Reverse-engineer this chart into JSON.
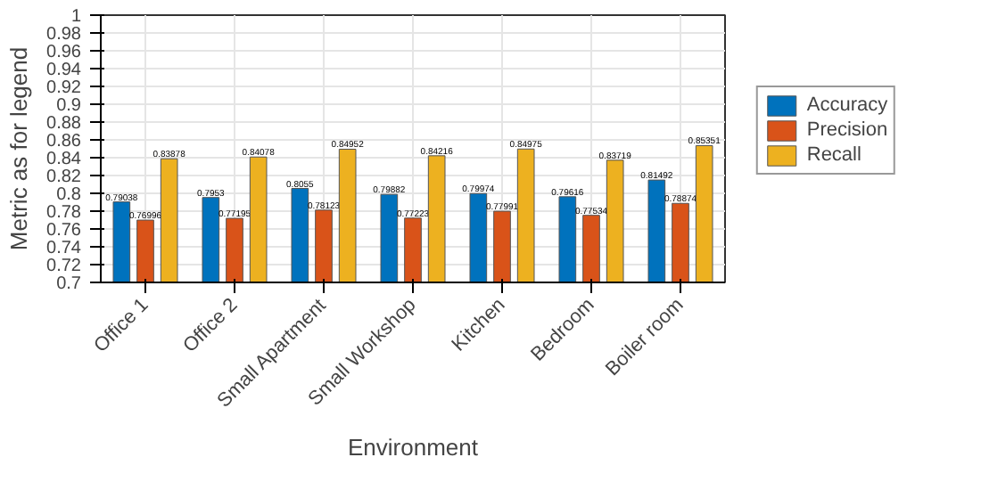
{
  "chart_data": {
    "type": "bar",
    "xlabel": "Environment",
    "ylabel": "Metric as for legend",
    "categories": [
      "Office 1",
      "Office 2",
      "Small Apartment",
      "Small Workshop",
      "Kitchen",
      "Bedroom",
      "Boiler room"
    ],
    "series": [
      {
        "name": "Accuracy",
        "color": "#0072bd",
        "values": [
          0.79038,
          0.7953,
          0.8055,
          0.79882,
          0.79974,
          0.79616,
          0.81492
        ]
      },
      {
        "name": "Precision",
        "color": "#d95319",
        "values": [
          0.76996,
          0.77195,
          0.78123,
          0.77223,
          0.77991,
          0.77534,
          0.78874
        ]
      },
      {
        "name": "Recall",
        "color": "#edb120",
        "values": [
          0.83878,
          0.84078,
          0.84952,
          0.84216,
          0.84975,
          0.83719,
          0.85351
        ]
      }
    ],
    "ylim": [
      0.7,
      1
    ],
    "yticks": [
      0.7,
      0.72,
      0.74,
      0.76,
      0.78,
      0.8,
      0.82,
      0.84,
      0.86,
      0.88,
      0.9,
      0.92,
      0.94,
      0.96,
      0.98,
      1
    ],
    "grid": true,
    "legend": "right",
    "data_labels": true
  }
}
